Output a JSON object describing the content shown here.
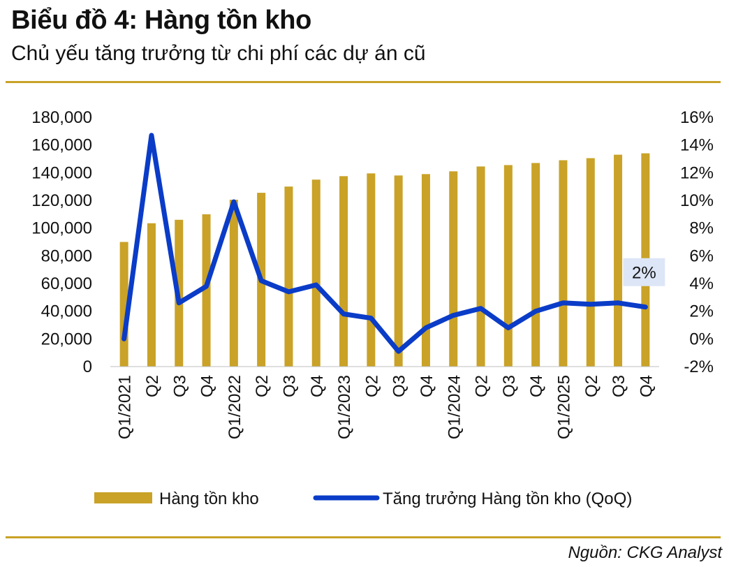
{
  "title": "Biểu đồ 4: Hàng tồn kho",
  "subtitle": "Chủ yếu tăng trưởng từ chi phí các dự án cũ",
  "source": "Nguồn: CKG Analyst",
  "colors": {
    "bar": "#c9a227",
    "line": "#0a3cc8",
    "rule": "#c9a227",
    "annotation_bg": "#dde6f7"
  },
  "chart_data": {
    "type": "bar",
    "categories": [
      "Q1/2021",
      "Q2",
      "Q3",
      "Q4",
      "Q1/2022",
      "Q2",
      "Q3",
      "Q4",
      "Q1/2023",
      "Q2",
      "Q3",
      "Q4",
      "Q1/2024",
      "Q2",
      "Q3",
      "Q4",
      "Q1/2025",
      "Q2",
      "Q3",
      "Q4"
    ],
    "series": [
      {
        "name": "Hàng tồn kho",
        "type": "bar",
        "axis": "left",
        "values": [
          90000,
          103500,
          106000,
          110000,
          120500,
          125500,
          130000,
          135000,
          137500,
          139500,
          138000,
          139000,
          141000,
          144500,
          145500,
          147000,
          149000,
          150500,
          153000,
          154000
        ]
      },
      {
        "name": "Tăng trưởng Hàng tồn kho (QoQ)",
        "type": "line",
        "axis": "right",
        "values": [
          0.0,
          14.7,
          2.6,
          3.8,
          9.9,
          4.2,
          3.4,
          3.9,
          1.8,
          1.5,
          -0.9,
          0.8,
          1.7,
          2.2,
          0.8,
          2.0,
          2.6,
          2.5,
          2.6,
          2.3
        ]
      }
    ],
    "y_left": {
      "min": 0,
      "max": 180000,
      "step": 20000,
      "tick_labels": [
        "0",
        "20,000",
        "40,000",
        "60,000",
        "80,000",
        "100,000",
        "120,000",
        "140,000",
        "160,000",
        "180,000"
      ]
    },
    "y_right": {
      "min": -2,
      "max": 16,
      "step": 2,
      "tick_labels": [
        "-2%",
        "0%",
        "2%",
        "4%",
        "6%",
        "8%",
        "10%",
        "12%",
        "14%",
        "16%"
      ]
    },
    "annotation": {
      "text": "2%",
      "series": 1,
      "index": 19
    },
    "grid": false,
    "legend": "bottom"
  }
}
